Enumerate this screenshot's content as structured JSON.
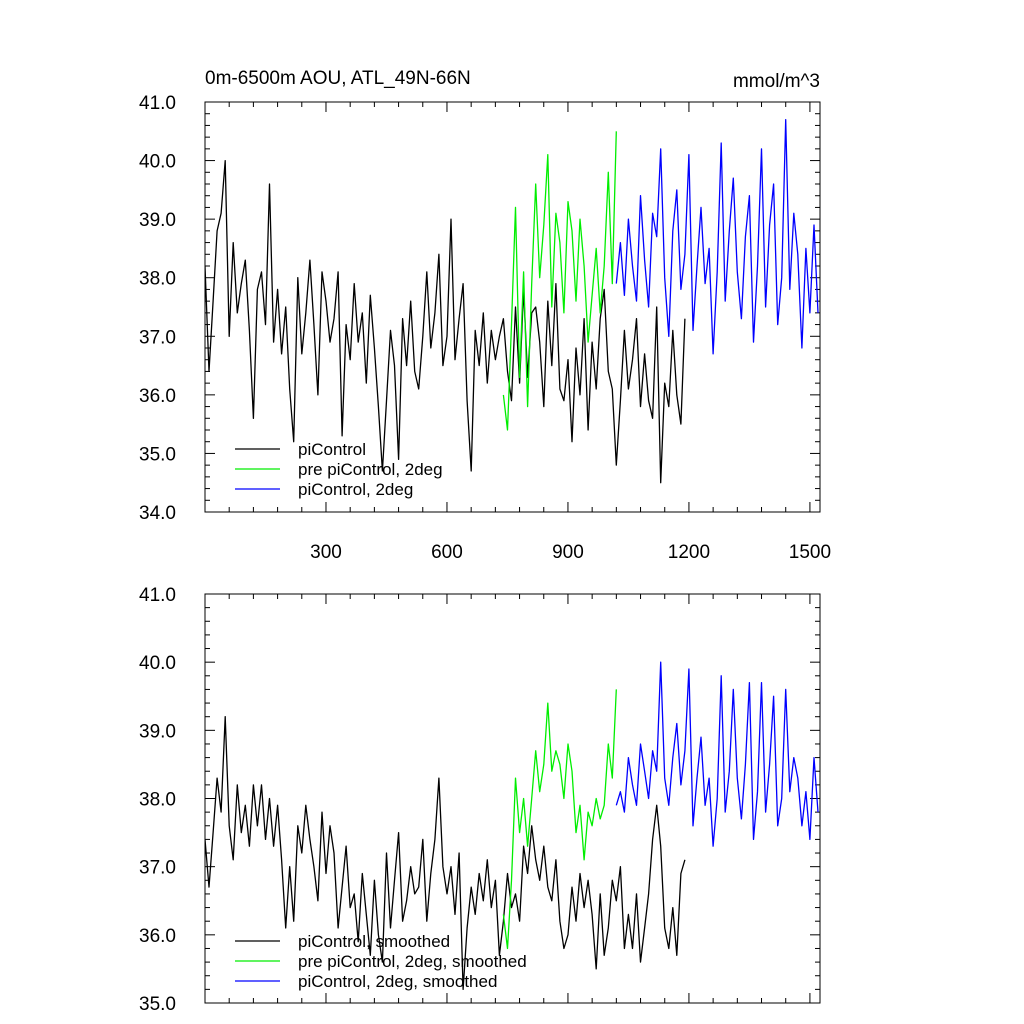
{
  "chart_data": [
    {
      "type": "line",
      "title_left": "0m-6500m AOU, ATL_49N-66N",
      "title_right": "mmol/m^3",
      "xlim": [
        0,
        1525
      ],
      "ylim": [
        34.0,
        41.0
      ],
      "x_ticks": [
        300,
        600,
        900,
        1200,
        1500
      ],
      "x_tick_labels": [
        "300",
        "600",
        "900",
        "1200",
        "1500"
      ],
      "y_ticks": [
        34.0,
        35.0,
        36.0,
        37.0,
        38.0,
        39.0,
        40.0,
        41.0
      ],
      "y_tick_labels": [
        "34.0",
        "35.0",
        "36.0",
        "37.0",
        "38.0",
        "39.0",
        "40.0",
        "41.0"
      ],
      "legend_location": "lower-left",
      "series": [
        {
          "name": "piControl",
          "color": "#000000",
          "x": [
            0,
            10,
            20,
            30,
            40,
            50,
            60,
            70,
            80,
            90,
            100,
            110,
            120,
            130,
            140,
            150,
            160,
            170,
            180,
            190,
            200,
            210,
            220,
            230,
            240,
            250,
            260,
            270,
            280,
            290,
            300,
            310,
            320,
            330,
            340,
            350,
            360,
            370,
            380,
            390,
            400,
            410,
            420,
            430,
            440,
            450,
            460,
            470,
            480,
            490,
            500,
            510,
            520,
            530,
            540,
            550,
            560,
            570,
            580,
            590,
            600,
            610,
            620,
            630,
            640,
            650,
            660,
            670,
            680,
            690,
            700,
            710,
            720,
            730,
            740,
            750,
            760,
            770,
            780,
            790,
            800,
            810,
            820,
            830,
            840,
            850,
            860,
            870,
            880,
            890,
            900,
            910,
            920,
            930,
            940,
            950,
            960,
            970,
            980,
            990,
            1000,
            1010,
            1020,
            1030,
            1040,
            1050,
            1060,
            1070,
            1080,
            1090,
            1100,
            1110,
            1120,
            1130,
            1140,
            1150,
            1160,
            1170,
            1180,
            1190
          ],
          "y": [
            38.2,
            36.4,
            37.6,
            38.8,
            39.1,
            40.0,
            37.0,
            38.6,
            37.4,
            37.9,
            38.3,
            37.1,
            35.6,
            37.8,
            38.1,
            37.2,
            39.6,
            36.9,
            37.8,
            36.7,
            37.5,
            36.1,
            35.2,
            38.0,
            36.7,
            37.4,
            38.3,
            37.2,
            36.0,
            38.1,
            37.6,
            36.9,
            37.3,
            38.1,
            35.3,
            37.2,
            36.6,
            37.9,
            36.9,
            37.4,
            36.2,
            37.7,
            36.8,
            35.8,
            34.7,
            35.9,
            37.1,
            36.5,
            34.9,
            37.3,
            36.5,
            37.6,
            36.4,
            36.1,
            37.0,
            38.1,
            36.8,
            37.4,
            38.4,
            36.5,
            37.0,
            39.0,
            36.6,
            37.3,
            37.9,
            35.9,
            34.7,
            37.1,
            36.5,
            37.4,
            36.2,
            37.1,
            36.6,
            37.0,
            37.3,
            36.4,
            35.9,
            37.5,
            36.2,
            37.8,
            36.3,
            37.4,
            37.5,
            36.9,
            35.8,
            37.6,
            36.5,
            37.9,
            36.1,
            35.9,
            36.6,
            35.2,
            36.8,
            36.0,
            37.3,
            35.4,
            36.9,
            36.1,
            37.3,
            37.8,
            36.4,
            36.1,
            34.8,
            35.9,
            37.1,
            36.1,
            36.6,
            37.3,
            35.8,
            36.7,
            35.9,
            35.6,
            37.5,
            34.5,
            36.2,
            35.8,
            37.1,
            36.0,
            35.5,
            37.3
          ]
        },
        {
          "name": "pre piControl, 2deg",
          "color": "#00ee00",
          "x": [
            740,
            750,
            760,
            770,
            780,
            790,
            800,
            810,
            820,
            830,
            840,
            850,
            860,
            870,
            880,
            890,
            900,
            910,
            920,
            930,
            940,
            950,
            960,
            970,
            980,
            990,
            1000,
            1010,
            1020
          ],
          "y": [
            36.0,
            35.4,
            37.2,
            39.2,
            36.3,
            38.1,
            35.8,
            37.9,
            39.6,
            38.0,
            38.9,
            40.1,
            37.5,
            39.1,
            38.6,
            37.4,
            39.3,
            38.8,
            37.6,
            39.0,
            38.2,
            36.9,
            37.7,
            38.5,
            37.4,
            38.2,
            39.8,
            37.9,
            40.5
          ]
        },
        {
          "name": "piControl, 2deg",
          "color": "#0000ff",
          "x": [
            1020,
            1030,
            1040,
            1050,
            1060,
            1070,
            1080,
            1090,
            1100,
            1110,
            1120,
            1130,
            1140,
            1150,
            1160,
            1170,
            1180,
            1190,
            1200,
            1210,
            1220,
            1230,
            1240,
            1250,
            1260,
            1270,
            1280,
            1290,
            1300,
            1310,
            1320,
            1330,
            1340,
            1350,
            1360,
            1370,
            1380,
            1390,
            1400,
            1410,
            1420,
            1430,
            1440,
            1450,
            1460,
            1470,
            1480,
            1490,
            1500,
            1510,
            1520
          ],
          "y": [
            37.9,
            38.6,
            37.7,
            39.0,
            38.2,
            37.6,
            39.4,
            38.3,
            37.5,
            39.1,
            38.7,
            40.2,
            38.0,
            37.0,
            38.8,
            39.5,
            37.8,
            38.4,
            40.1,
            37.1,
            38.2,
            39.2,
            37.9,
            38.5,
            36.7,
            38.1,
            40.3,
            37.6,
            38.8,
            39.7,
            38.1,
            37.3,
            38.7,
            39.4,
            36.9,
            38.2,
            40.2,
            37.5,
            38.9,
            39.6,
            37.2,
            38.0,
            40.7,
            37.8,
            39.1,
            38.4,
            36.8,
            38.5,
            37.4,
            38.9,
            37.4
          ]
        }
      ]
    },
    {
      "type": "line",
      "xlim": [
        0,
        1525
      ],
      "ylim": [
        35.0,
        41.0
      ],
      "x_ticks": [
        300,
        600,
        900,
        1200,
        1500
      ],
      "y_ticks": [
        35.0,
        36.0,
        37.0,
        38.0,
        39.0,
        40.0,
        41.0
      ],
      "y_tick_labels": [
        "35.0",
        "36.0",
        "37.0",
        "38.0",
        "39.0",
        "40.0",
        "41.0"
      ],
      "legend_location": "lower-left",
      "series": [
        {
          "name": "piControl, smoothed",
          "color": "#000000",
          "x": [
            0,
            10,
            20,
            30,
            40,
            50,
            60,
            70,
            80,
            90,
            100,
            110,
            120,
            130,
            140,
            150,
            160,
            170,
            180,
            190,
            200,
            210,
            220,
            230,
            240,
            250,
            260,
            270,
            280,
            290,
            300,
            310,
            320,
            330,
            340,
            350,
            360,
            370,
            380,
            390,
            400,
            410,
            420,
            430,
            440,
            450,
            460,
            470,
            480,
            490,
            500,
            510,
            520,
            530,
            540,
            550,
            560,
            570,
            580,
            590,
            600,
            610,
            620,
            630,
            640,
            650,
            660,
            670,
            680,
            690,
            700,
            710,
            720,
            730,
            740,
            750,
            760,
            770,
            780,
            790,
            800,
            810,
            820,
            830,
            840,
            850,
            860,
            870,
            880,
            890,
            900,
            910,
            920,
            930,
            940,
            950,
            960,
            970,
            980,
            990,
            1000,
            1010,
            1020,
            1030,
            1040,
            1050,
            1060,
            1070,
            1080,
            1090,
            1100,
            1110,
            1120,
            1130,
            1140,
            1150,
            1160,
            1170,
            1180,
            1190
          ],
          "y": [
            37.4,
            36.7,
            37.5,
            38.3,
            37.8,
            39.2,
            37.6,
            37.1,
            38.2,
            37.5,
            37.9,
            37.3,
            38.2,
            37.6,
            38.2,
            37.4,
            38.0,
            37.3,
            37.9,
            37.1,
            36.1,
            37.0,
            36.2,
            37.6,
            37.2,
            37.9,
            37.4,
            37.0,
            36.5,
            37.8,
            36.9,
            37.6,
            37.2,
            36.1,
            36.7,
            37.3,
            36.4,
            36.6,
            35.9,
            36.9,
            36.3,
            35.7,
            36.8,
            36.0,
            35.6,
            37.2,
            36.1,
            36.8,
            37.5,
            36.2,
            36.5,
            37.0,
            36.6,
            36.7,
            37.4,
            36.2,
            36.9,
            37.4,
            38.3,
            37.0,
            36.6,
            37.0,
            36.3,
            37.2,
            35.2,
            36.1,
            36.7,
            36.3,
            36.9,
            36.5,
            37.1,
            36.4,
            36.8,
            35.7,
            36.2,
            36.9,
            36.4,
            36.6,
            36.2,
            37.3,
            36.9,
            37.6,
            37.1,
            36.8,
            37.3,
            36.7,
            36.5,
            37.1,
            36.2,
            35.8,
            36.0,
            36.7,
            36.2,
            36.9,
            36.4,
            36.8,
            36.3,
            35.5,
            36.6,
            35.7,
            36.1,
            36.8,
            36.5,
            37.0,
            35.8,
            36.3,
            35.8,
            36.6,
            35.6,
            36.1,
            36.6,
            37.4,
            37.9,
            37.3,
            36.1,
            35.8,
            36.4,
            35.7,
            36.9,
            37.1
          ]
        },
        {
          "name": "pre piControl, 2deg, smoothed",
          "color": "#00ee00",
          "x": [
            740,
            750,
            760,
            770,
            780,
            790,
            800,
            810,
            820,
            830,
            840,
            850,
            860,
            870,
            880,
            890,
            900,
            910,
            920,
            930,
            940,
            950,
            960,
            970,
            980,
            990,
            1000,
            1010,
            1020
          ],
          "y": [
            36.3,
            35.8,
            36.8,
            38.3,
            37.5,
            38.0,
            37.3,
            38.0,
            38.7,
            38.1,
            38.5,
            39.4,
            38.4,
            38.7,
            38.5,
            38.0,
            38.8,
            38.4,
            37.5,
            37.9,
            37.1,
            37.8,
            37.6,
            38.0,
            37.7,
            37.9,
            38.8,
            38.3,
            39.6
          ]
        },
        {
          "name": "piControl, 2deg, smoothed",
          "color": "#0000ff",
          "x": [
            1020,
            1030,
            1040,
            1050,
            1060,
            1070,
            1080,
            1090,
            1100,
            1110,
            1120,
            1130,
            1140,
            1150,
            1160,
            1170,
            1180,
            1190,
            1200,
            1210,
            1220,
            1230,
            1240,
            1250,
            1260,
            1270,
            1280,
            1290,
            1300,
            1310,
            1320,
            1330,
            1340,
            1350,
            1360,
            1370,
            1380,
            1390,
            1400,
            1410,
            1420,
            1430,
            1440,
            1450,
            1460,
            1470,
            1480,
            1490,
            1500,
            1510,
            1520
          ],
          "y": [
            37.9,
            38.1,
            37.8,
            38.6,
            38.2,
            37.9,
            38.8,
            38.4,
            38.0,
            38.7,
            38.4,
            40.0,
            38.3,
            37.9,
            38.6,
            39.1,
            38.2,
            38.7,
            39.9,
            37.6,
            38.3,
            38.9,
            37.9,
            38.3,
            37.3,
            38.0,
            39.8,
            37.8,
            38.4,
            39.6,
            38.3,
            37.7,
            38.5,
            39.7,
            37.4,
            38.1,
            39.7,
            37.8,
            38.5,
            39.5,
            37.6,
            38.0,
            39.6,
            38.1,
            38.6,
            38.3,
            37.6,
            38.1,
            37.4,
            38.6,
            37.8
          ]
        }
      ]
    }
  ]
}
